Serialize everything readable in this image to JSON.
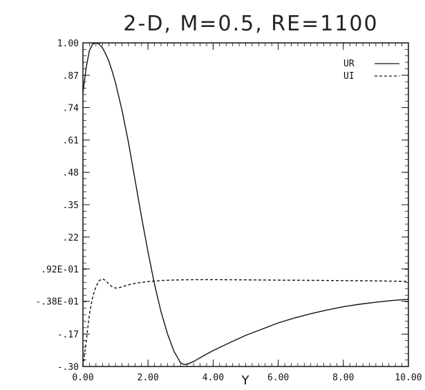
{
  "chart_data": {
    "type": "line",
    "title": "2-D,  M=0.5,  RE=1100",
    "xlabel": "Y",
    "ylabel": "",
    "xlim": [
      0,
      10
    ],
    "ylim": [
      -0.3,
      1.0
    ],
    "x_ticks": [
      0,
      2,
      4,
      6,
      8,
      10
    ],
    "x_tick_labels": [
      "0.00",
      "2.00",
      "4.00",
      "6.00",
      "8.00",
      "10.00"
    ],
    "y_ticks": [
      1.0,
      0.87,
      0.74,
      0.61,
      0.48,
      0.35,
      0.22,
      0.092,
      -0.038,
      -0.17,
      -0.3
    ],
    "y_tick_labels": [
      "1.00",
      ".87",
      ".74",
      ".61",
      ".48",
      ".35",
      ".22",
      ".92E-01",
      "-.38E-01",
      "-.17",
      "-.30"
    ],
    "grid": false,
    "legend_position": "top-right",
    "series": [
      {
        "name": "UR",
        "style": "solid",
        "color": "#111111",
        "x": [
          0.0,
          0.1,
          0.2,
          0.3,
          0.4,
          0.5,
          0.6,
          0.7,
          0.8,
          0.9,
          1.0,
          1.2,
          1.4,
          1.6,
          1.8,
          2.0,
          2.2,
          2.4,
          2.6,
          2.8,
          3.0,
          3.1,
          3.2,
          3.4,
          3.6,
          3.8,
          4.0,
          4.5,
          5.0,
          5.5,
          6.0,
          6.5,
          7.0,
          7.5,
          8.0,
          8.5,
          9.0,
          9.5,
          10.0
        ],
        "y": [
          0.8,
          0.9,
          0.97,
          0.995,
          1.0,
          0.995,
          0.98,
          0.955,
          0.925,
          0.885,
          0.84,
          0.73,
          0.6,
          0.45,
          0.3,
          0.16,
          0.03,
          -0.08,
          -0.17,
          -0.24,
          -0.285,
          -0.292,
          -0.291,
          -0.28,
          -0.265,
          -0.25,
          -0.236,
          -0.205,
          -0.175,
          -0.15,
          -0.125,
          -0.105,
          -0.088,
          -0.073,
          -0.06,
          -0.05,
          -0.042,
          -0.035,
          -0.03
        ]
      },
      {
        "name": "UI",
        "style": "dashed",
        "color": "#111111",
        "x": [
          0.0,
          0.1,
          0.2,
          0.3,
          0.4,
          0.5,
          0.6,
          0.7,
          0.8,
          0.9,
          1.0,
          1.1,
          1.2,
          1.4,
          1.6,
          1.8,
          2.0,
          2.5,
          3.0,
          3.5,
          4.0,
          5.0,
          6.0,
          7.0,
          8.0,
          9.0,
          10.0
        ],
        "y": [
          -0.3,
          -0.2,
          -0.09,
          -0.02,
          0.02,
          0.045,
          0.052,
          0.045,
          0.03,
          0.02,
          0.015,
          0.016,
          0.02,
          0.028,
          0.034,
          0.038,
          0.041,
          0.046,
          0.048,
          0.049,
          0.049,
          0.048,
          0.047,
          0.046,
          0.045,
          0.044,
          0.042
        ]
      }
    ]
  }
}
